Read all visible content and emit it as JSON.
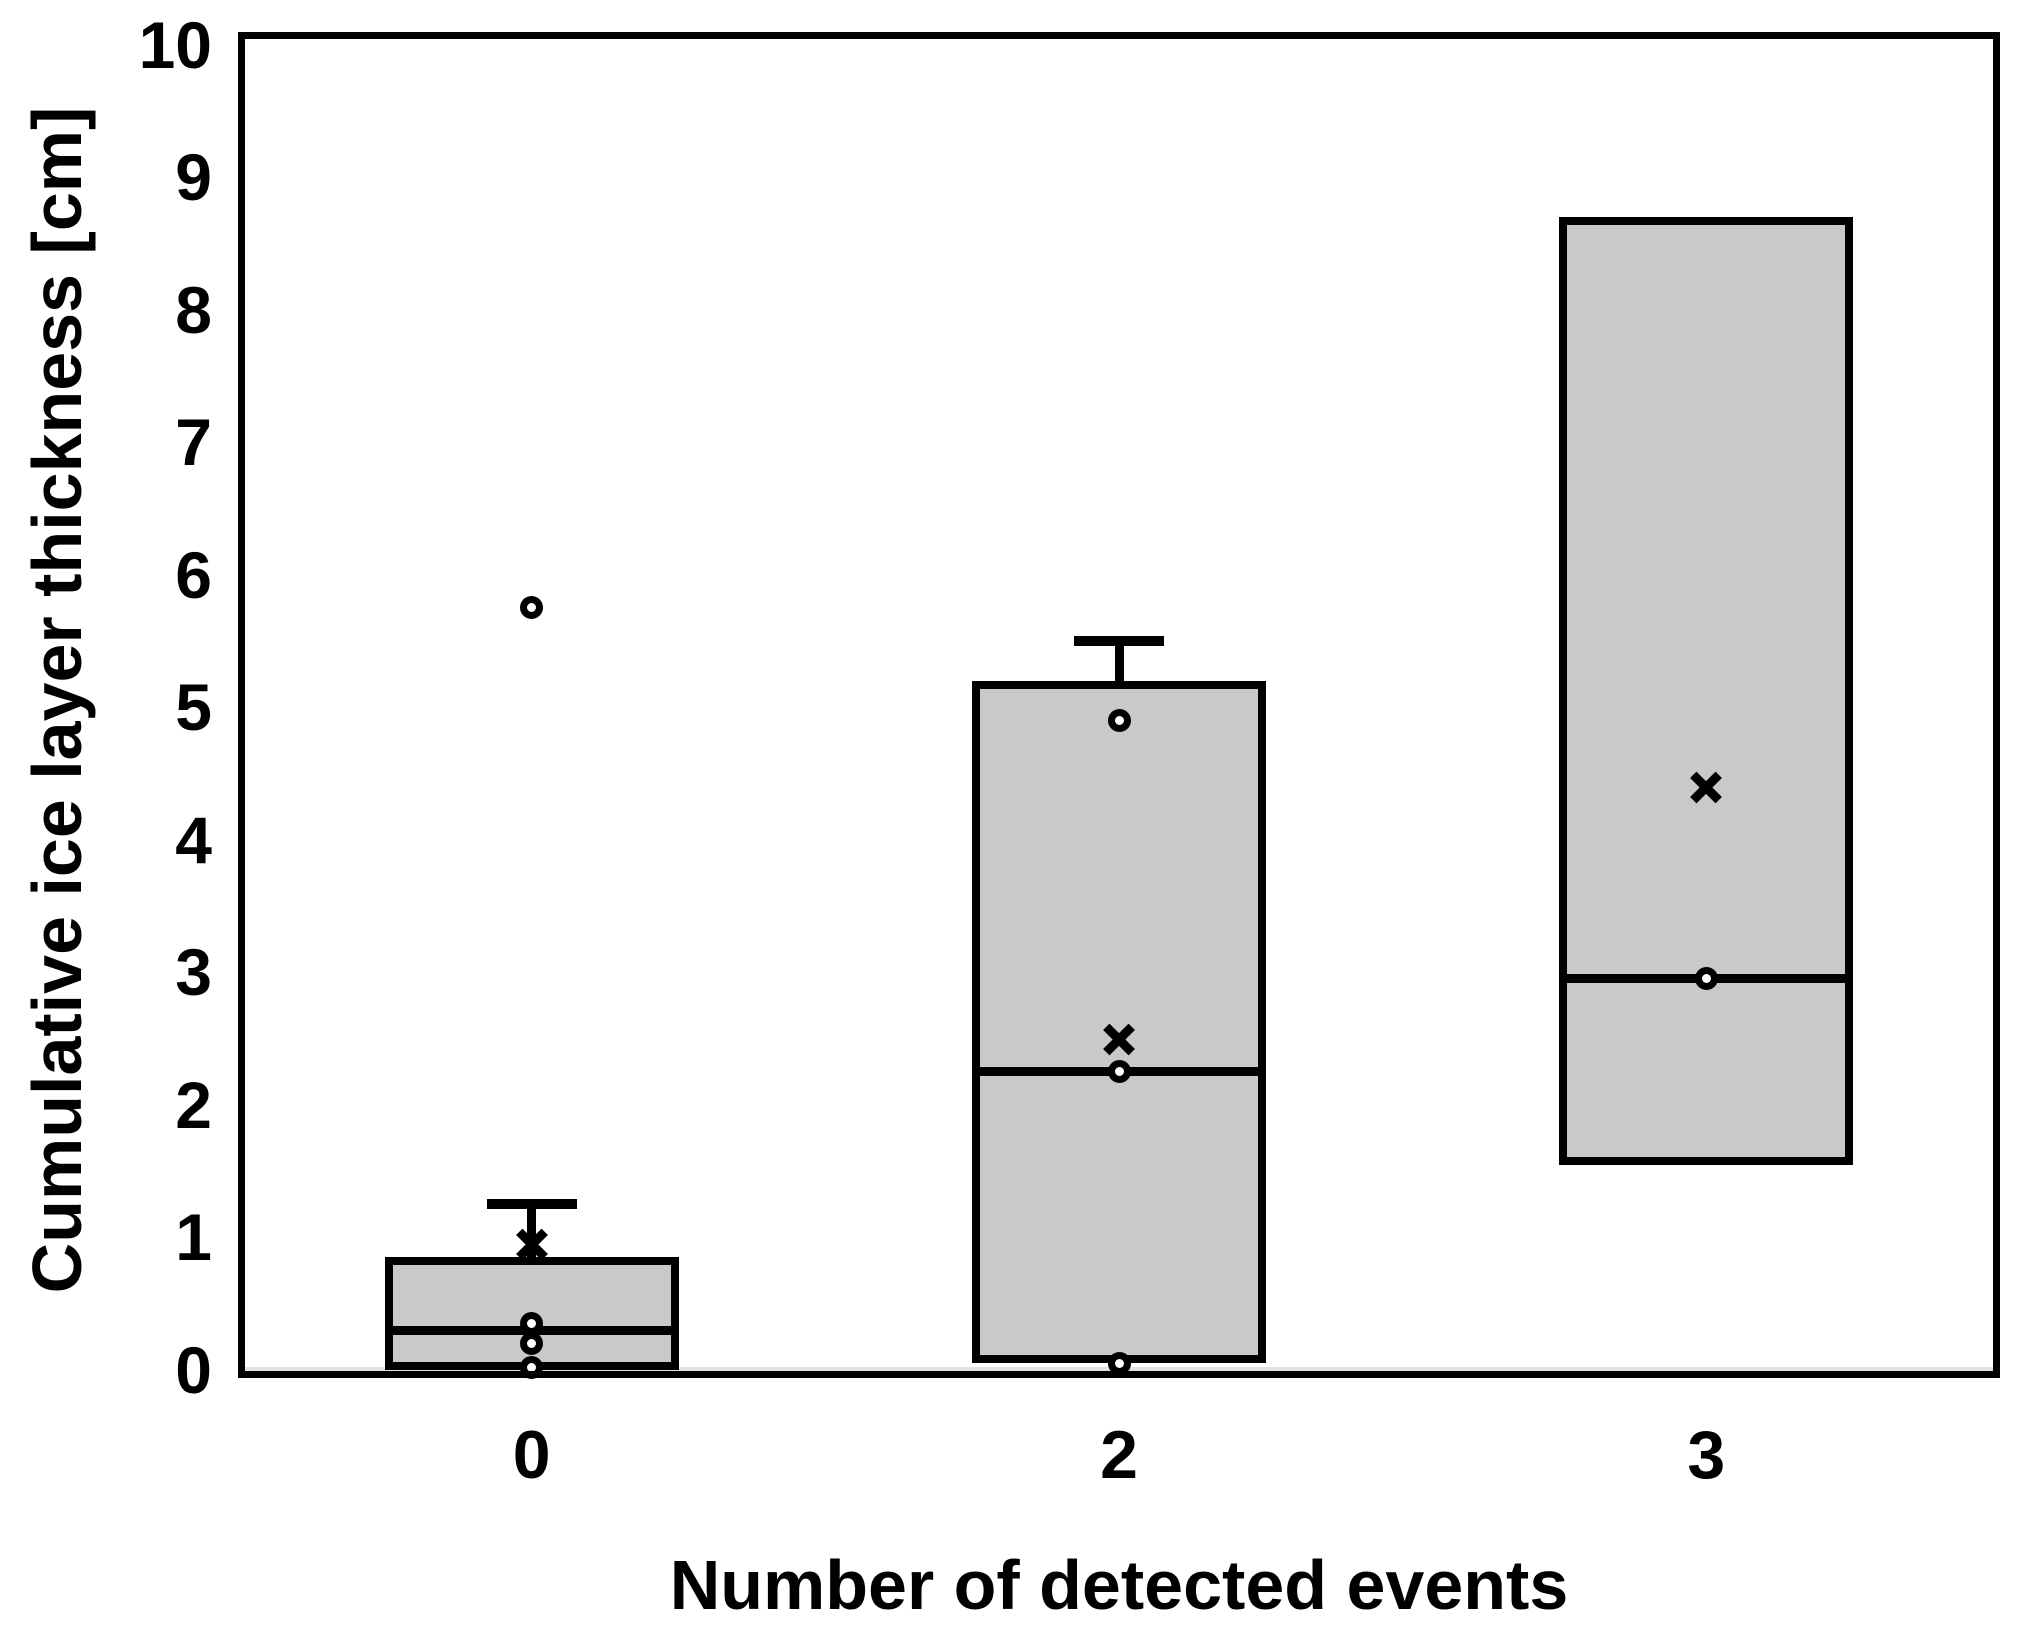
{
  "chart_data": {
    "type": "box",
    "title": "",
    "xlabel": "Number of detected events",
    "ylabel": "Cumulative ice layer thickness [cm]",
    "ylim": [
      0,
      10
    ],
    "yticks": [
      0,
      1,
      2,
      3,
      4,
      5,
      6,
      7,
      8,
      9,
      10
    ],
    "categories": [
      "0",
      "2",
      "3"
    ],
    "legend": "none",
    "grid": "off",
    "boxes": [
      {
        "category": "0",
        "q1": 0.0,
        "median": 0.3,
        "q3": 0.85,
        "whisker_high": 1.25,
        "mean": 0.95,
        "points": [
          5.75,
          0.35,
          0.2,
          0.02
        ]
      },
      {
        "category": "2",
        "q1": 0.05,
        "median": 2.25,
        "q3": 5.2,
        "whisker_high": 5.5,
        "mean": 2.5,
        "points": [
          4.9,
          2.25,
          0.05
        ]
      },
      {
        "category": "3",
        "q1": 1.55,
        "median": 2.95,
        "q3": 8.7,
        "mean": 4.4,
        "points": [
          2.95
        ]
      }
    ],
    "colors": {
      "box_fill": "#c9c9c9",
      "line": "#000000",
      "zero_line": "#e2e2e2",
      "background": "#ffffff"
    }
  }
}
